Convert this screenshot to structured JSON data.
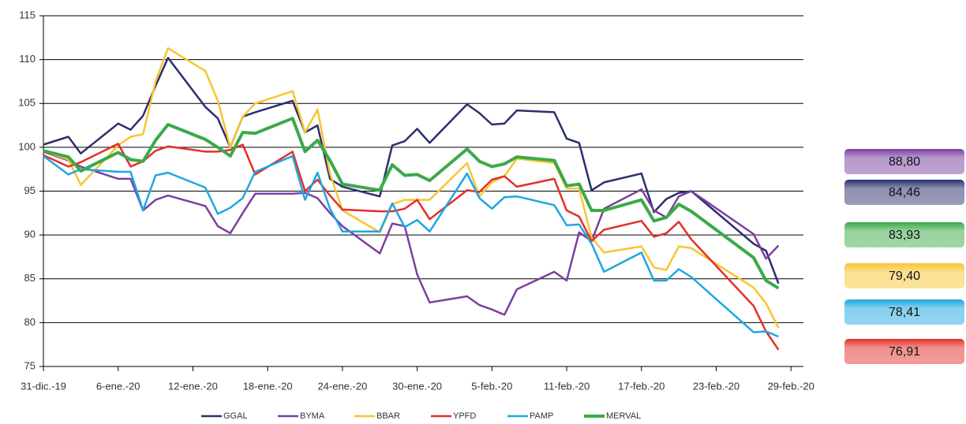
{
  "chart_data": {
    "type": "line",
    "x": [
      "2019-12-31",
      "2020-01-02",
      "2020-01-03",
      "2020-01-06",
      "2020-01-07",
      "2020-01-08",
      "2020-01-09",
      "2020-01-10",
      "2020-01-13",
      "2020-01-14",
      "2020-01-15",
      "2020-01-16",
      "2020-01-17",
      "2020-01-20",
      "2020-01-21",
      "2020-01-22",
      "2020-01-23",
      "2020-01-24",
      "2020-01-27",
      "2020-01-28",
      "2020-01-29",
      "2020-01-30",
      "2020-01-31",
      "2020-02-03",
      "2020-02-04",
      "2020-02-05",
      "2020-02-06",
      "2020-02-07",
      "2020-02-10",
      "2020-02-11",
      "2020-02-12",
      "2020-02-13",
      "2020-02-14",
      "2020-02-17",
      "2020-02-18",
      "2020-02-19",
      "2020-02-20",
      "2020-02-21",
      "2020-02-26",
      "2020-02-27",
      "2020-02-28"
    ],
    "series": [
      {
        "name": "GGAL",
        "color": "#2b2f6e",
        "values": [
          100.3,
          101.2,
          99.3,
          102.7,
          102.0,
          103.6,
          107.0,
          110.2,
          104.6,
          103.3,
          100.0,
          103.5,
          104.0,
          105.3,
          101.7,
          102.5,
          96.4,
          95.5,
          94.4,
          100.2,
          100.7,
          102.1,
          100.5,
          104.9,
          103.9,
          102.6,
          102.7,
          104.2,
          104.0,
          101.0,
          100.5,
          95.1,
          96.0,
          97.0,
          92.6,
          94.1,
          94.8,
          95.0,
          89.0,
          88.2,
          84.46
        ]
      },
      {
        "name": "BYMA",
        "color": "#7b3fa1",
        "values": [
          99.5,
          98.5,
          97.8,
          96.4,
          96.4,
          92.8,
          94.0,
          94.5,
          93.3,
          91.0,
          90.2,
          92.5,
          94.7,
          94.7,
          94.8,
          94.2,
          92.5,
          91.0,
          87.9,
          91.3,
          91.0,
          85.5,
          82.3,
          83.0,
          82.0,
          81.5,
          80.9,
          83.8,
          85.8,
          84.8,
          90.3,
          89.3,
          93.0,
          95.2,
          92.8,
          92.0,
          94.4,
          95.0,
          90.1,
          87.3,
          88.8
        ]
      },
      {
        "name": "BBAR",
        "color": "#f7c531",
        "values": [
          99.6,
          98.6,
          95.7,
          100.2,
          101.2,
          101.5,
          107.5,
          111.3,
          108.7,
          105.3,
          100.0,
          103.5,
          105.0,
          106.4,
          101.7,
          104.3,
          97.0,
          92.8,
          90.3,
          93.5,
          94.0,
          94.0,
          94.0,
          98.2,
          94.4,
          96.0,
          96.7,
          98.7,
          98.2,
          95.3,
          95.3,
          89.7,
          88.0,
          88.7,
          86.3,
          86.0,
          88.7,
          88.5,
          84.0,
          82.2,
          79.4
        ]
      },
      {
        "name": "YPFD",
        "color": "#e2302a",
        "values": [
          99.1,
          97.8,
          98.3,
          100.4,
          97.8,
          98.4,
          99.6,
          100.1,
          99.5,
          99.5,
          99.7,
          100.3,
          96.9,
          99.5,
          95.0,
          96.3,
          94.5,
          92.9,
          92.7,
          92.7,
          93.0,
          94.0,
          91.8,
          95.1,
          94.9,
          96.3,
          96.7,
          95.5,
          96.4,
          92.8,
          92.1,
          89.3,
          90.6,
          91.6,
          89.8,
          90.2,
          91.5,
          89.5,
          81.9,
          79.0,
          76.91
        ]
      },
      {
        "name": "PAMP",
        "color": "#1ea7e1",
        "values": [
          99.0,
          96.9,
          97.5,
          97.2,
          97.2,
          92.8,
          96.8,
          97.1,
          95.4,
          92.4,
          93.1,
          94.2,
          97.2,
          99.0,
          94.0,
          97.1,
          93.0,
          90.4,
          90.4,
          93.6,
          90.9,
          91.7,
          90.4,
          97.0,
          94.2,
          93.0,
          94.3,
          94.4,
          93.4,
          91.1,
          91.2,
          89.0,
          85.8,
          88.0,
          84.8,
          84.8,
          86.1,
          85.2,
          78.9,
          79.0,
          78.41
        ]
      },
      {
        "name": "MERVAL",
        "color": "#3aaa49",
        "values": [
          99.6,
          98.9,
          97.3,
          99.4,
          98.6,
          98.4,
          100.8,
          102.6,
          100.9,
          100.0,
          99.0,
          101.7,
          101.6,
          103.3,
          99.5,
          100.8,
          98.5,
          95.8,
          95.1,
          98.0,
          96.8,
          96.9,
          96.2,
          99.8,
          98.4,
          97.8,
          98.1,
          98.9,
          98.5,
          95.6,
          95.8,
          92.8,
          92.8,
          94.0,
          91.6,
          92.0,
          93.5,
          92.7,
          87.4,
          84.8,
          83.93
        ]
      }
    ],
    "xlim": [
      "2019-12-31",
      "2020-03-01"
    ],
    "xticks": [
      {
        "value": "2019-12-31",
        "label": "31-dic.-19"
      },
      {
        "value": "2020-01-06",
        "label": "6-ene.-20"
      },
      {
        "value": "2020-01-12",
        "label": "12-ene.-20"
      },
      {
        "value": "2020-01-18",
        "label": "18-ene.-20"
      },
      {
        "value": "2020-01-24",
        "label": "24-ene.-20"
      },
      {
        "value": "2020-01-30",
        "label": "30-ene.-20"
      },
      {
        "value": "2020-02-05",
        "label": "5-feb.-20"
      },
      {
        "value": "2020-02-11",
        "label": "11-feb.-20"
      },
      {
        "value": "2020-02-17",
        "label": "17-feb.-20"
      },
      {
        "value": "2020-02-23",
        "label": "23-feb.-20"
      },
      {
        "value": "2020-02-29",
        "label": "29-feb.-20"
      }
    ],
    "ylim": [
      75,
      115
    ],
    "yticks": [
      75,
      80,
      85,
      90,
      95,
      100,
      105,
      110,
      115
    ],
    "grid": true,
    "legend": "bottom",
    "end_labels": [
      {
        "value": 88.8,
        "label": "88,80",
        "color": "#7b3fa1"
      },
      {
        "value": 84.46,
        "label": "84,46",
        "color": "#2b2f6e"
      },
      {
        "value": 83.93,
        "label": "83,93",
        "color": "#3aaa49"
      },
      {
        "value": 79.4,
        "label": "79,40",
        "color": "#f7c531"
      },
      {
        "value": 78.41,
        "label": "78,41",
        "color": "#1ea7e1"
      },
      {
        "value": 76.91,
        "label": "76,91",
        "color": "#e2302a"
      }
    ]
  }
}
